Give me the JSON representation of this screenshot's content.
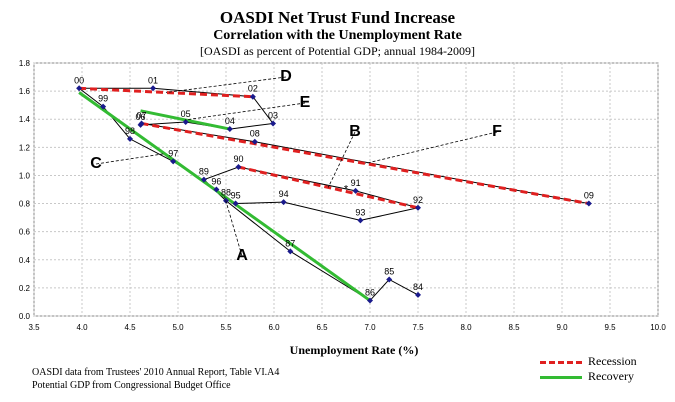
{
  "chart_data": {
    "type": "scatter",
    "title": "OASDI Net Trust Fund Increase",
    "subtitle": "Correlation with the Unemployment Rate",
    "subtitle2": "[OASDI as percent of Potential GDP;  annual 1984-2009]",
    "xlabel": "Unemployment Rate (%)",
    "ylabel": "",
    "xlim": [
      3.5,
      10.0
    ],
    "ylim": [
      0.0,
      1.8
    ],
    "xticks": [
      "3.5",
      "4.0",
      "4.5",
      "5.0",
      "5.5",
      "6.0",
      "6.5",
      "7.0",
      "7.5",
      "8.0",
      "8.5",
      "9.0",
      "9.5",
      "10.0"
    ],
    "yticks": [
      "0.0",
      "0.2",
      "0.4",
      "0.6",
      "0.8",
      "1.0",
      "1.2",
      "1.4",
      "1.6",
      "1.8"
    ],
    "grid": true,
    "points": [
      {
        "label": "84",
        "x": 7.5,
        "y": 0.15
      },
      {
        "label": "85",
        "x": 7.2,
        "y": 0.26
      },
      {
        "label": "86",
        "x": 7.0,
        "y": 0.11
      },
      {
        "label": "87",
        "x": 6.17,
        "y": 0.46
      },
      {
        "label": "88",
        "x": 5.5,
        "y": 0.82
      },
      {
        "label": "89",
        "x": 5.27,
        "y": 0.97
      },
      {
        "label": "90",
        "x": 5.63,
        "y": 1.06
      },
      {
        "label": "91",
        "x": 6.85,
        "y": 0.89
      },
      {
        "label": "92",
        "x": 7.5,
        "y": 0.77
      },
      {
        "label": "93",
        "x": 6.9,
        "y": 0.68
      },
      {
        "label": "94",
        "x": 6.1,
        "y": 0.81
      },
      {
        "label": "95",
        "x": 5.6,
        "y": 0.8
      },
      {
        "label": "96",
        "x": 5.4,
        "y": 0.9
      },
      {
        "label": "97",
        "x": 4.95,
        "y": 1.1
      },
      {
        "label": "98",
        "x": 4.5,
        "y": 1.26
      },
      {
        "label": "99",
        "x": 4.22,
        "y": 1.49
      },
      {
        "label": "00",
        "x": 3.97,
        "y": 1.62
      },
      {
        "label": "01",
        "x": 4.74,
        "y": 1.62
      },
      {
        "label": "02",
        "x": 5.78,
        "y": 1.56
      },
      {
        "label": "03",
        "x": 5.99,
        "y": 1.37
      },
      {
        "label": "04",
        "x": 5.54,
        "y": 1.33
      },
      {
        "label": "05",
        "x": 5.08,
        "y": 1.38
      },
      {
        "label": "06",
        "x": 4.61,
        "y": 1.36
      },
      {
        "label": "07",
        "x": 4.62,
        "y": 1.37
      },
      {
        "label": "08",
        "x": 5.8,
        "y": 1.24
      },
      {
        "label": "09",
        "x": 9.28,
        "y": 0.8
      }
    ],
    "recession_segments": [
      {
        "from": [
          3.97,
          1.62
        ],
        "to": [
          5.78,
          1.56
        ]
      },
      {
        "from": [
          5.63,
          1.06
        ],
        "to": [
          7.5,
          0.77
        ]
      },
      {
        "from": [
          4.62,
          1.37
        ],
        "to": [
          9.28,
          0.8
        ]
      }
    ],
    "recovery_segments": [
      {
        "from": [
          3.97,
          1.59
        ],
        "to": [
          7.0,
          0.11
        ]
      },
      {
        "from": [
          4.61,
          1.46
        ],
        "to": [
          5.54,
          1.33
        ]
      }
    ],
    "trend_lines": [
      {
        "label": "A",
        "from": [
          3.97,
          1.59
        ],
        "to": [
          7.0,
          0.11
        ]
      },
      {
        "label": "B",
        "from": [
          5.63,
          1.06
        ],
        "to": [
          7.5,
          0.77
        ]
      },
      {
        "label": "C",
        "from": [
          4.22,
          1.49
        ],
        "to": [
          5.5,
          0.82
        ]
      },
      {
        "label": "D",
        "from": [
          3.97,
          1.62
        ],
        "to": [
          5.78,
          1.56
        ]
      },
      {
        "label": "E",
        "from": [
          4.61,
          1.46
        ],
        "to": [
          5.54,
          1.33
        ]
      },
      {
        "label": "F",
        "from": [
          4.62,
          1.37
        ],
        "to": [
          9.28,
          0.8
        ]
      }
    ],
    "callouts": [
      "A",
      "B",
      "C",
      "D",
      "E",
      "F"
    ],
    "asterisk": "*",
    "legend": [
      "Recession",
      "Recovery"
    ],
    "legend_position": "bottom-right",
    "colors": {
      "recession": "#e02020",
      "recovery": "#33bb33",
      "marker": "#1a1a8c",
      "line": "#000000"
    }
  },
  "notes": [
    "OASDI data from Trustees' 2010 Annual Report, Table VI.A4",
    "Potential GDP from Congressional Budget Office"
  ]
}
